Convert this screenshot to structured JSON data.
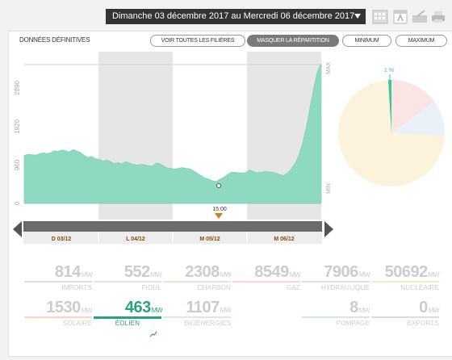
{
  "header": {
    "date_range": "Dimanche 03 décembre 2017 au Mercredi 06 décembre 2017"
  },
  "panel": {
    "subtitle": "DONNÉES DÉFINITIVES",
    "buttons": {
      "all_sectors": "VOIR TOUTES LES FILIÈRES",
      "hide_breakdown": "MASQUER LA RÉPARTITION",
      "minimum": "MINIMUM",
      "maximum": "MAXIMUM"
    }
  },
  "chart_data": {
    "type": "area",
    "title": "",
    "xlabel": "",
    "ylabel": "",
    "ylim": [
      0,
      3800
    ],
    "y_ticks": [
      "0",
      "960",
      "1920",
      "2890"
    ],
    "max_label": "MAX",
    "min_label": "MIN",
    "day_labels": [
      "D 03/12",
      "L 04/12",
      "M 05/12",
      "M 06/12"
    ],
    "cursor_label": "15:00",
    "color": "#8dd9c1",
    "series": [
      {
        "values": [
          1200,
          1230,
          1220,
          1210,
          1240,
          1270,
          1250,
          1270,
          1320,
          1300,
          1340,
          1320,
          1290,
          1350,
          1310,
          1280,
          1200,
          1150,
          1180,
          1120,
          1100,
          1060,
          1090,
          1050,
          1000,
          1020,
          990,
          1050,
          1010,
          980,
          960,
          980,
          970,
          940,
          930,
          1010,
          1000,
          940,
          890,
          880,
          860,
          880,
          900,
          880,
          870,
          820,
          760,
          700,
          640,
          610,
          570,
          550,
          600,
          650,
          720,
          780,
          780,
          770,
          760,
          780,
          840,
          800,
          770,
          780,
          800,
          790,
          780,
          760,
          720,
          700,
          760,
          860,
          1000,
          1200,
          1500,
          1900,
          2400,
          2900,
          3300,
          3500
        ]
      }
    ]
  },
  "pie": {
    "label": "1 %",
    "colors": [
      "#f8d8e0",
      "#e8f0f8",
      "#fdf3dc",
      "#33c9a0"
    ]
  },
  "stats": [
    {
      "value": "814",
      "unit": "MW",
      "label": "IMPORTS",
      "color": "#dcdcdc"
    },
    {
      "value": "552",
      "unit": "MW",
      "label": "FIOUL",
      "color": "#e6dcf0"
    },
    {
      "value": "2308",
      "unit": "MW",
      "label": "CHARBON",
      "color": "#f3dfd2"
    },
    {
      "value": "8549",
      "unit": "MW",
      "label": "GAZ",
      "color": "#f8d4d4"
    },
    {
      "value": "7906",
      "unit": "MW",
      "label": "HYDRAULIQUE",
      "color": "#d3e3f0"
    },
    {
      "value": "50692",
      "unit": "MW",
      "label": "NUCLÉAIRE",
      "color": "#fbe9c6"
    },
    {
      "value": "1530",
      "unit": "MW",
      "label": "SOLAIRE",
      "color": "#fbd7c2"
    },
    {
      "value": "463",
      "unit": "MW",
      "label": "ÉOLIEN",
      "color": "#2aa378"
    },
    {
      "value": "1107",
      "unit": "MW",
      "label": "BIOÉNERGIES",
      "color": "#d9eed0"
    },
    {
      "value": "8",
      "unit": "MW",
      "label": "POMPAGE",
      "color": "#d3e3f0"
    },
    {
      "value": "0",
      "unit": "MW",
      "label": "EXPORTS",
      "color": "#dcdcdc"
    }
  ]
}
